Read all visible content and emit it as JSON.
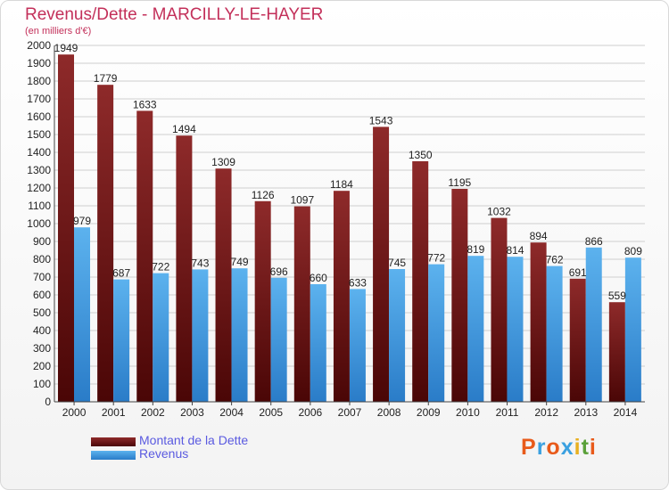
{
  "title": "Revenus/Dette - MARCILLY-LE-HAYER",
  "subtitle": "(en milliers d'€)",
  "logo": {
    "text": "Proxiti",
    "letters": [
      "P",
      "r",
      "o",
      "x",
      "i",
      "t",
      "i"
    ],
    "colors": [
      "#e85a1a",
      "#3aa0e0",
      "#e85a1a",
      "#3aa0e0",
      "#e8b020",
      "#5aa03a",
      "#e85a1a"
    ]
  },
  "legend": [
    {
      "label": "Montant de la Dette",
      "color": "#7a1a1a"
    },
    {
      "label": "Revenus",
      "color": "#4aa0e6"
    }
  ],
  "chart_data": {
    "type": "bar",
    "categories": [
      "2000",
      "2001",
      "2002",
      "2003",
      "2004",
      "2005",
      "2006",
      "2007",
      "2008",
      "2009",
      "2010",
      "2011",
      "2012",
      "2013",
      "2014"
    ],
    "series": [
      {
        "name": "Montant de la Dette",
        "color": "#7a1a1a",
        "values": [
          1949,
          1779,
          1633,
          1494,
          1309,
          1126,
          1097,
          1184,
          1543,
          1350,
          1195,
          1032,
          894,
          691,
          559
        ],
        "labels": [
          "1949",
          "1779",
          "1633",
          "1494",
          "1309",
          "1126",
          "1097",
          "1184",
          "1543",
          "1350",
          "1195",
          "1032",
          "894",
          "691",
          "559"
        ]
      },
      {
        "name": "Revenus",
        "color": "#4aa0e6",
        "values": [
          979,
          687,
          722,
          743,
          749,
          696,
          660,
          633,
          745,
          772,
          819,
          814,
          762,
          866,
          809
        ],
        "labels": [
          "979",
          "687",
          "722",
          "743",
          "749",
          "696",
          "660",
          "633",
          "745",
          "772",
          "819",
          "814",
          "762",
          "866",
          "809"
        ]
      }
    ],
    "yticks": [
      "0",
      "100",
      "200",
      "300",
      "400",
      "500",
      "600",
      "700",
      "800",
      "900",
      "1000",
      "1100",
      "1200",
      "1300",
      "1400",
      "1500",
      "1600",
      "1700",
      "1800",
      "1900",
      "2000"
    ],
    "ylim": [
      0,
      2000
    ],
    "grid": true,
    "legend_position": "bottom-left"
  }
}
